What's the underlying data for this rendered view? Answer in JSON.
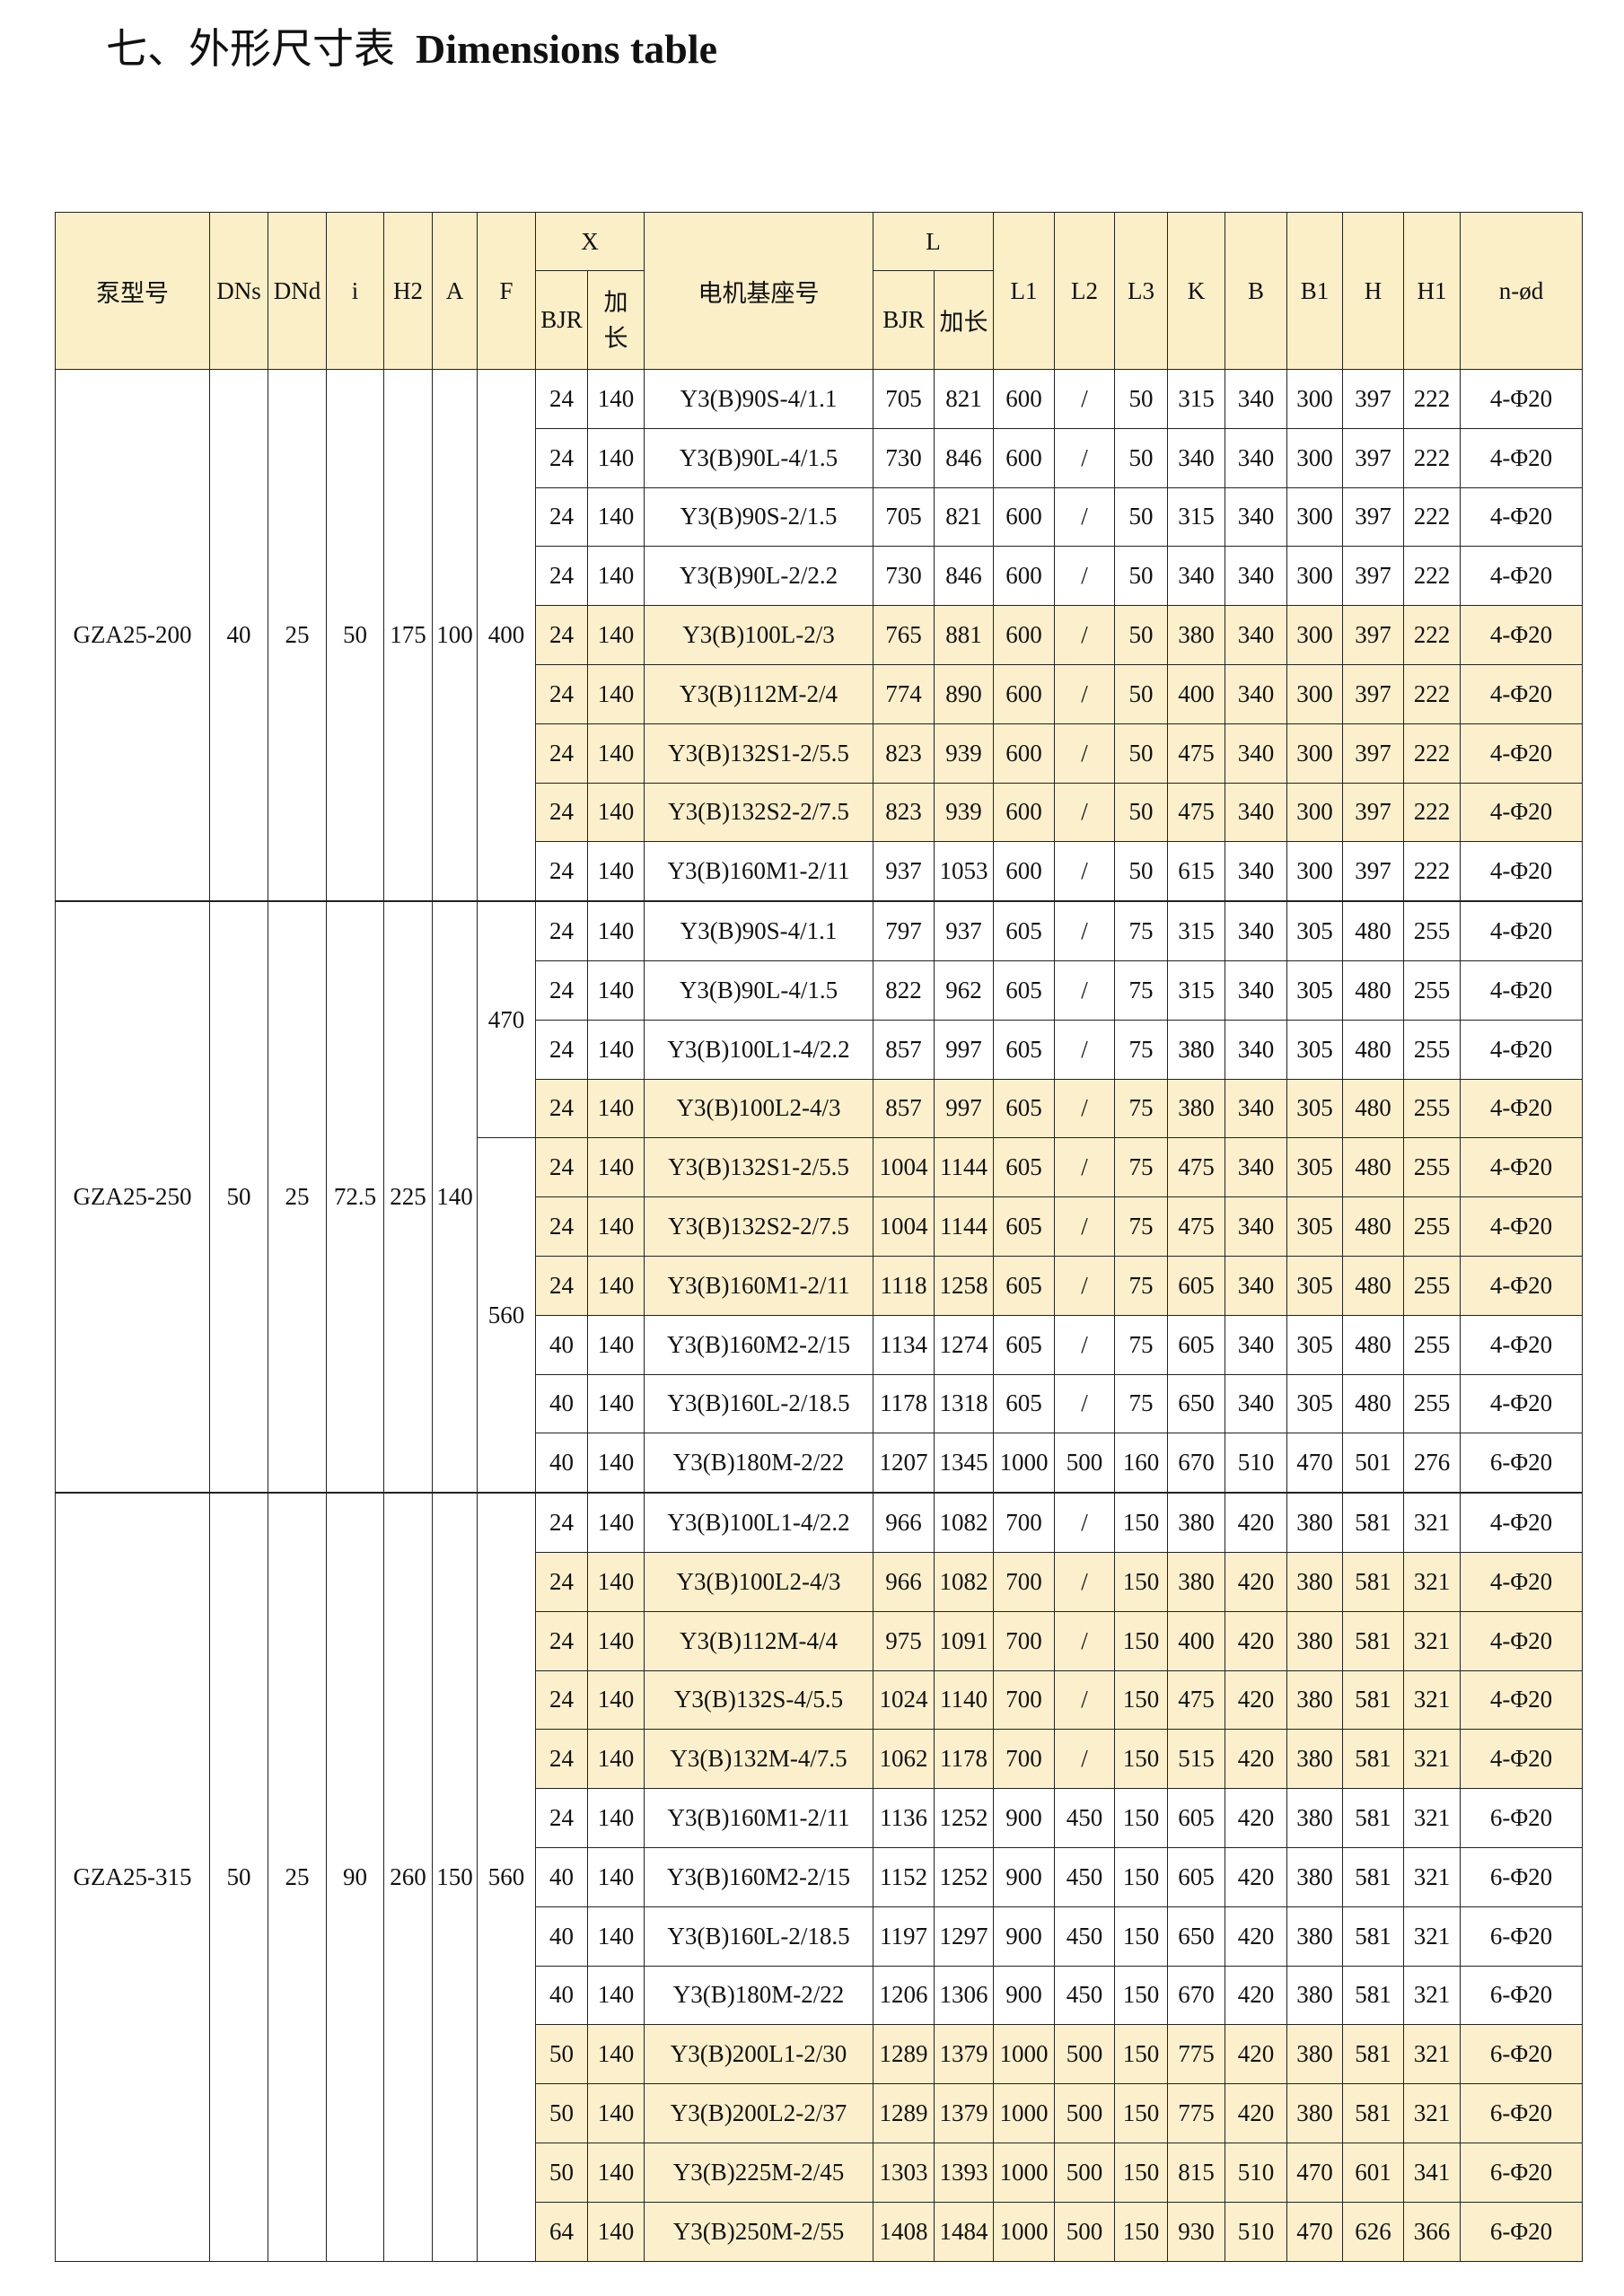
{
  "title": {
    "cn": "七、外形尺寸表",
    "en": "Dimensions table"
  },
  "colors": {
    "header_bg": "#fbefc8",
    "highlight_row": "#fcf0cc",
    "border": "#222222"
  },
  "headers": {
    "model": "泵型号",
    "dns": "DNs",
    "dnd": "DNd",
    "i": "i",
    "h2": "H2",
    "a": "A",
    "f": "F",
    "x": "X",
    "x_bjr": "BJR",
    "x_ext": "加长",
    "motor": "电机基座号",
    "l": "L",
    "l_bjr": "BJR",
    "l_ext": "加长",
    "l1": "L1",
    "l2": "L2",
    "l3": "L3",
    "k": "K",
    "b": "B",
    "b1": "B1",
    "h": "H",
    "h1": "H1",
    "nd": "n-ød"
  },
  "groups": [
    {
      "model": "GZA25-200",
      "dns": "40",
      "dnd": "25",
      "i": "50",
      "h2": "175",
      "a": "100",
      "f": [
        {
          "value": "400",
          "rows": 9
        }
      ],
      "rows": [
        {
          "hl": false,
          "v": [
            "24",
            "140",
            "Y3(B)90S-4/1.1",
            "705",
            "821",
            "600",
            "/",
            "50",
            "315",
            "340",
            "300",
            "397",
            "222",
            "4-Φ20"
          ]
        },
        {
          "hl": false,
          "v": [
            "24",
            "140",
            "Y3(B)90L-4/1.5",
            "730",
            "846",
            "600",
            "/",
            "50",
            "340",
            "340",
            "300",
            "397",
            "222",
            "4-Φ20"
          ]
        },
        {
          "hl": false,
          "v": [
            "24",
            "140",
            "Y3(B)90S-2/1.5",
            "705",
            "821",
            "600",
            "/",
            "50",
            "315",
            "340",
            "300",
            "397",
            "222",
            "4-Φ20"
          ]
        },
        {
          "hl": false,
          "v": [
            "24",
            "140",
            "Y3(B)90L-2/2.2",
            "730",
            "846",
            "600",
            "/",
            "50",
            "340",
            "340",
            "300",
            "397",
            "222",
            "4-Φ20"
          ]
        },
        {
          "hl": true,
          "v": [
            "24",
            "140",
            "Y3(B)100L-2/3",
            "765",
            "881",
            "600",
            "/",
            "50",
            "380",
            "340",
            "300",
            "397",
            "222",
            "4-Φ20"
          ]
        },
        {
          "hl": true,
          "v": [
            "24",
            "140",
            "Y3(B)112M-2/4",
            "774",
            "890",
            "600",
            "/",
            "50",
            "400",
            "340",
            "300",
            "397",
            "222",
            "4-Φ20"
          ]
        },
        {
          "hl": true,
          "v": [
            "24",
            "140",
            "Y3(B)132S1-2/5.5",
            "823",
            "939",
            "600",
            "/",
            "50",
            "475",
            "340",
            "300",
            "397",
            "222",
            "4-Φ20"
          ]
        },
        {
          "hl": true,
          "v": [
            "24",
            "140",
            "Y3(B)132S2-2/7.5",
            "823",
            "939",
            "600",
            "/",
            "50",
            "475",
            "340",
            "300",
            "397",
            "222",
            "4-Φ20"
          ]
        },
        {
          "hl": false,
          "v": [
            "24",
            "140",
            "Y3(B)160M1-2/11",
            "937",
            "1053",
            "600",
            "/",
            "50",
            "615",
            "340",
            "300",
            "397",
            "222",
            "4-Φ20"
          ]
        }
      ]
    },
    {
      "model": "GZA25-250",
      "dns": "50",
      "dnd": "25",
      "i": "72.5",
      "h2": "225",
      "a": "140",
      "f": [
        {
          "value": "470",
          "rows": 4
        },
        {
          "value": "560",
          "rows": 6
        }
      ],
      "rows": [
        {
          "hl": false,
          "v": [
            "24",
            "140",
            "Y3(B)90S-4/1.1",
            "797",
            "937",
            "605",
            "/",
            "75",
            "315",
            "340",
            "305",
            "480",
            "255",
            "4-Φ20"
          ]
        },
        {
          "hl": false,
          "v": [
            "24",
            "140",
            "Y3(B)90L-4/1.5",
            "822",
            "962",
            "605",
            "/",
            "75",
            "315",
            "340",
            "305",
            "480",
            "255",
            "4-Φ20"
          ]
        },
        {
          "hl": false,
          "v": [
            "24",
            "140",
            "Y3(B)100L1-4/2.2",
            "857",
            "997",
            "605",
            "/",
            "75",
            "380",
            "340",
            "305",
            "480",
            "255",
            "4-Φ20"
          ]
        },
        {
          "hl": true,
          "v": [
            "24",
            "140",
            "Y3(B)100L2-4/3",
            "857",
            "997",
            "605",
            "/",
            "75",
            "380",
            "340",
            "305",
            "480",
            "255",
            "4-Φ20"
          ]
        },
        {
          "hl": true,
          "v": [
            "24",
            "140",
            "Y3(B)132S1-2/5.5",
            "1004",
            "1144",
            "605",
            "/",
            "75",
            "475",
            "340",
            "305",
            "480",
            "255",
            "4-Φ20"
          ]
        },
        {
          "hl": true,
          "v": [
            "24",
            "140",
            "Y3(B)132S2-2/7.5",
            "1004",
            "1144",
            "605",
            "/",
            "75",
            "475",
            "340",
            "305",
            "480",
            "255",
            "4-Φ20"
          ]
        },
        {
          "hl": true,
          "v": [
            "24",
            "140",
            "Y3(B)160M1-2/11",
            "1118",
            "1258",
            "605",
            "/",
            "75",
            "605",
            "340",
            "305",
            "480",
            "255",
            "4-Φ20"
          ]
        },
        {
          "hl": false,
          "v": [
            "40",
            "140",
            "Y3(B)160M2-2/15",
            "1134",
            "1274",
            "605",
            "/",
            "75",
            "605",
            "340",
            "305",
            "480",
            "255",
            "4-Φ20"
          ]
        },
        {
          "hl": false,
          "v": [
            "40",
            "140",
            "Y3(B)160L-2/18.5",
            "1178",
            "1318",
            "605",
            "/",
            "75",
            "650",
            "340",
            "305",
            "480",
            "255",
            "4-Φ20"
          ]
        },
        {
          "hl": false,
          "v": [
            "40",
            "140",
            "Y3(B)180M-2/22",
            "1207",
            "1345",
            "1000",
            "500",
            "160",
            "670",
            "510",
            "470",
            "501",
            "276",
            "6-Φ20"
          ]
        }
      ]
    },
    {
      "model": "GZA25-315",
      "dns": "50",
      "dnd": "25",
      "i": "90",
      "h2": "260",
      "a": "150",
      "f": [
        {
          "value": "560",
          "rows": 13
        }
      ],
      "rows": [
        {
          "hl": false,
          "v": [
            "24",
            "140",
            "Y3(B)100L1-4/2.2",
            "966",
            "1082",
            "700",
            "/",
            "150",
            "380",
            "420",
            "380",
            "581",
            "321",
            "4-Φ20"
          ]
        },
        {
          "hl": true,
          "v": [
            "24",
            "140",
            "Y3(B)100L2-4/3",
            "966",
            "1082",
            "700",
            "/",
            "150",
            "380",
            "420",
            "380",
            "581",
            "321",
            "4-Φ20"
          ]
        },
        {
          "hl": true,
          "v": [
            "24",
            "140",
            "Y3(B)112M-4/4",
            "975",
            "1091",
            "700",
            "/",
            "150",
            "400",
            "420",
            "380",
            "581",
            "321",
            "4-Φ20"
          ]
        },
        {
          "hl": true,
          "v": [
            "24",
            "140",
            "Y3(B)132S-4/5.5",
            "1024",
            "1140",
            "700",
            "/",
            "150",
            "475",
            "420",
            "380",
            "581",
            "321",
            "4-Φ20"
          ]
        },
        {
          "hl": true,
          "v": [
            "24",
            "140",
            "Y3(B)132M-4/7.5",
            "1062",
            "1178",
            "700",
            "/",
            "150",
            "515",
            "420",
            "380",
            "581",
            "321",
            "4-Φ20"
          ]
        },
        {
          "hl": false,
          "v": [
            "24",
            "140",
            "Y3(B)160M1-2/11",
            "1136",
            "1252",
            "900",
            "450",
            "150",
            "605",
            "420",
            "380",
            "581",
            "321",
            "6-Φ20"
          ]
        },
        {
          "hl": false,
          "v": [
            "40",
            "140",
            "Y3(B)160M2-2/15",
            "1152",
            "1252",
            "900",
            "450",
            "150",
            "605",
            "420",
            "380",
            "581",
            "321",
            "6-Φ20"
          ]
        },
        {
          "hl": false,
          "v": [
            "40",
            "140",
            "Y3(B)160L-2/18.5",
            "1197",
            "1297",
            "900",
            "450",
            "150",
            "650",
            "420",
            "380",
            "581",
            "321",
            "6-Φ20"
          ]
        },
        {
          "hl": false,
          "v": [
            "40",
            "140",
            "Y3(B)180M-2/22",
            "1206",
            "1306",
            "900",
            "450",
            "150",
            "670",
            "420",
            "380",
            "581",
            "321",
            "6-Φ20"
          ]
        },
        {
          "hl": true,
          "v": [
            "50",
            "140",
            "Y3(B)200L1-2/30",
            "1289",
            "1379",
            "1000",
            "500",
            "150",
            "775",
            "420",
            "380",
            "581",
            "321",
            "6-Φ20"
          ]
        },
        {
          "hl": true,
          "v": [
            "50",
            "140",
            "Y3(B)200L2-2/37",
            "1289",
            "1379",
            "1000",
            "500",
            "150",
            "775",
            "420",
            "380",
            "581",
            "321",
            "6-Φ20"
          ]
        },
        {
          "hl": true,
          "v": [
            "50",
            "140",
            "Y3(B)225M-2/45",
            "1303",
            "1393",
            "1000",
            "500",
            "150",
            "815",
            "510",
            "470",
            "601",
            "341",
            "6-Φ20"
          ]
        },
        {
          "hl": true,
          "v": [
            "64",
            "140",
            "Y3(B)250M-2/55",
            "1408",
            "1484",
            "1000",
            "500",
            "150",
            "930",
            "510",
            "470",
            "626",
            "366",
            "6-Φ20"
          ]
        }
      ]
    }
  ]
}
